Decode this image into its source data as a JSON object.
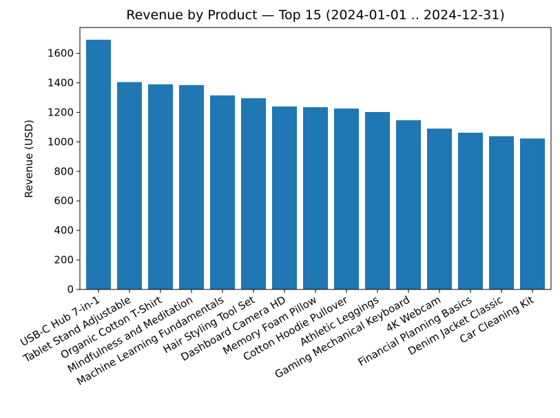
{
  "chart_data": {
    "type": "bar",
    "title": "Revenue by Product — Top 15 (2024-01-01 .. 2024-12-31)",
    "xlabel": "",
    "ylabel": "Revenue (USD)",
    "ylim": [
      0,
      1775
    ],
    "yticks": [
      0,
      200,
      400,
      600,
      800,
      1000,
      1200,
      1400,
      1600
    ],
    "grid": false,
    "bar_color": "#1f77b4",
    "categories": [
      "USB-C Hub 7-in-1",
      "Tablet Stand Adjustable",
      "Organic Cotton T-Shirt",
      "Mindfulness and Meditation",
      "Machine Learning Fundamentals",
      "Hair Styling Tool Set",
      "Dashboard Camera HD",
      "Memory Foam Pillow",
      "Cotton Hoodie Pullover",
      "Athletic Leggings",
      "Gaming Mechanical Keyboard",
      "4K Webcam",
      "Financial Planning Basics",
      "Denim Jacket Classic",
      "Car Cleaning Kit"
    ],
    "values": [
      1692,
      1405,
      1390,
      1385,
      1315,
      1296,
      1240,
      1235,
      1226,
      1202,
      1147,
      1090,
      1062,
      1038,
      1023
    ]
  }
}
